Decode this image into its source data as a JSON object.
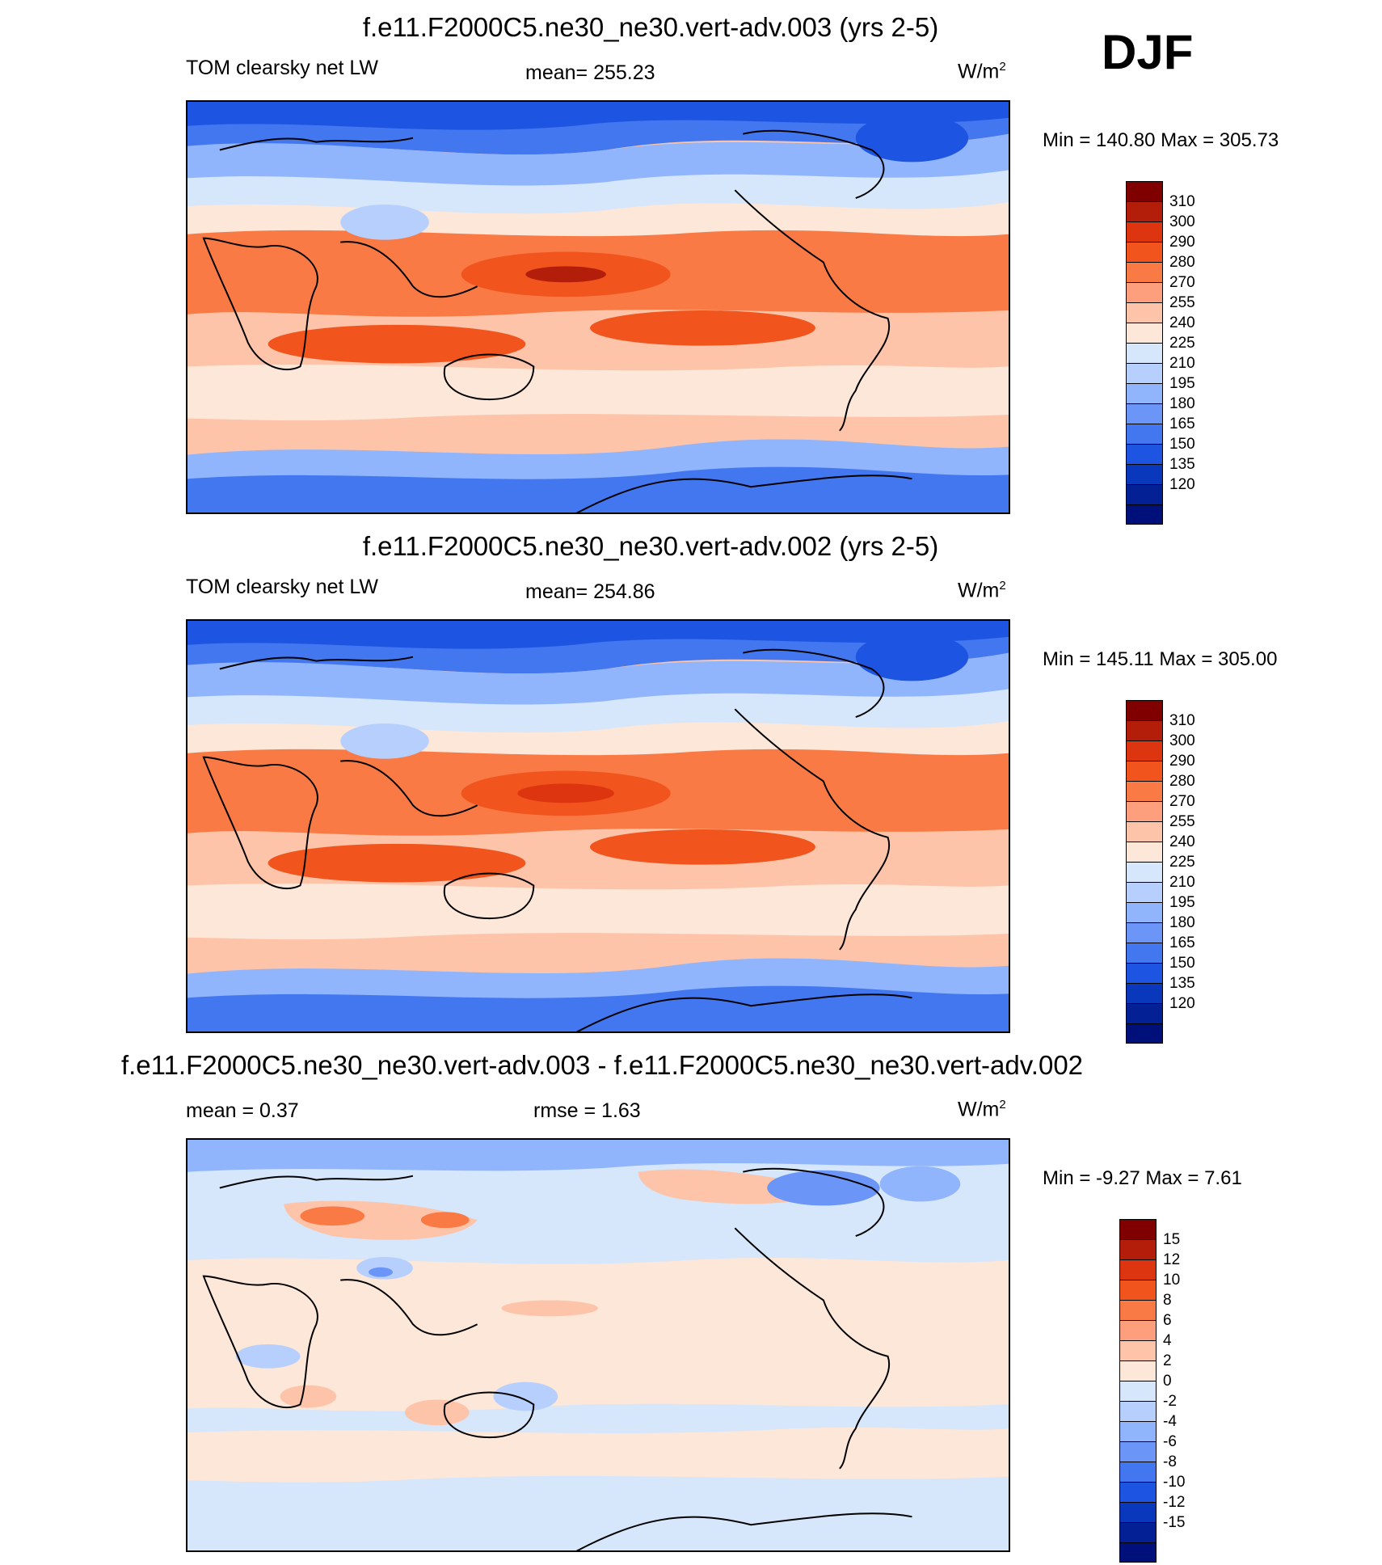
{
  "season": "DJF",
  "panels": [
    {
      "title": "f.e11.F2000C5.ne30_ne30.vert-adv.003 (yrs 2-5)",
      "left_label": "TOM clearsky net LW",
      "center_label": "mean= 255.23",
      "units": "W/m",
      "units_sup": "2",
      "minmax": "Min = 140.80 Max = 305.73",
      "colorbar": {
        "colors": [
          "#800000",
          "#b31e0a",
          "#dc3510",
          "#f1541c",
          "#fa7a45",
          "#fd9e7d",
          "#fdc4a9",
          "#fde7d8",
          "#d6e6fb",
          "#b6cffd",
          "#90b5fd",
          "#6b96f8",
          "#4277ef",
          "#1d55e2",
          "#0938bd",
          "#032095",
          "#00107a"
        ],
        "labels": [
          "310",
          "300",
          "290",
          "280",
          "270",
          "255",
          "240",
          "225",
          "210",
          "195",
          "180",
          "165",
          "150",
          "135",
          "120"
        ]
      },
      "map_desc": "global clear-sky outgoing longwave field, warm tropics and cold poles"
    },
    {
      "title": "f.e11.F2000C5.ne30_ne30.vert-adv.002 (yrs 2-5)",
      "left_label": "TOM clearsky net LW",
      "center_label": "mean= 254.86",
      "units": "W/m",
      "units_sup": "2",
      "minmax": "Min = 145.11 Max = 305.00",
      "colorbar": {
        "colors": [
          "#800000",
          "#b31e0a",
          "#dc3510",
          "#f1541c",
          "#fa7a45",
          "#fd9e7d",
          "#fdc4a9",
          "#fde7d8",
          "#d6e6fb",
          "#b6cffd",
          "#90b5fd",
          "#6b96f8",
          "#4277ef",
          "#1d55e2",
          "#0938bd",
          "#032095",
          "#00107a"
        ],
        "labels": [
          "310",
          "300",
          "290",
          "280",
          "270",
          "255",
          "240",
          "225",
          "210",
          "195",
          "180",
          "165",
          "150",
          "135",
          "120"
        ]
      },
      "map_desc": "global clear-sky outgoing longwave field, warm tropics and cold poles"
    },
    {
      "title": "f.e11.F2000C5.ne30_ne30.vert-adv.003 - f.e11.F2000C5.ne30_ne30.vert-adv.002",
      "left_label": "mean =   0.37",
      "center_label": "rmse =   1.63",
      "units": "W/m",
      "units_sup": "2",
      "minmax": "Min =  -9.27 Max =   7.61",
      "colorbar": {
        "colors": [
          "#800000",
          "#b31e0a",
          "#dc3510",
          "#f1541c",
          "#fa7a45",
          "#fd9e7d",
          "#fdc4a9",
          "#fde7d8",
          "#d6e6fb",
          "#b6cffd",
          "#90b5fd",
          "#6b96f8",
          "#4277ef",
          "#1d55e2",
          "#0938bd",
          "#032095",
          "#00107a"
        ],
        "labels": [
          "15",
          "12",
          "10",
          "8",
          "6",
          "4",
          "2",
          "0",
          "-2",
          "-4",
          "-6",
          "-8",
          "-10",
          "-12",
          "-15"
        ]
      },
      "map_desc": "difference field, mostly near zero"
    }
  ]
}
